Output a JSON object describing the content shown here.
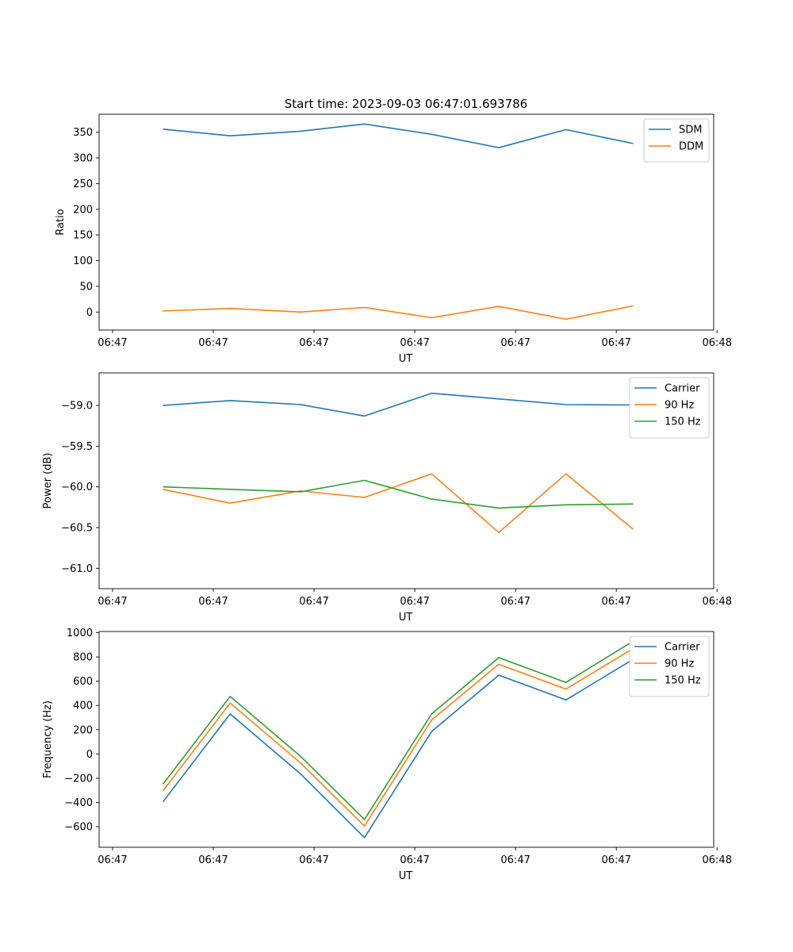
{
  "figure": {
    "title": "Start time: 2023-09-03 06:47:01.693786"
  },
  "chart_data": [
    {
      "type": "line",
      "id": "ratio",
      "title": "Start time: 2023-09-03 06:47:01.693786",
      "xlabel": "UT",
      "ylabel": "Ratio",
      "xlim": [
        -0.4,
        8.75
      ],
      "ylim": [
        -35,
        385
      ],
      "x_ticks": [
        {
          "value": -0.2,
          "label": "06:47"
        },
        {
          "value": 1.3,
          "label": "06:47"
        },
        {
          "value": 2.8,
          "label": "06:47"
        },
        {
          "value": 4.3,
          "label": "06:47"
        },
        {
          "value": 5.8,
          "label": "06:47"
        },
        {
          "value": 7.3,
          "label": "06:47"
        },
        {
          "value": 8.8,
          "label": "06:48"
        }
      ],
      "y_ticks": [
        {
          "value": 350,
          "label": "350"
        },
        {
          "value": 300,
          "label": "300"
        },
        {
          "value": 250,
          "label": "250"
        },
        {
          "value": 200,
          "label": "200"
        },
        {
          "value": 150,
          "label": "150"
        },
        {
          "value": 100,
          "label": "100"
        },
        {
          "value": 50,
          "label": "50"
        },
        {
          "value": 0,
          "label": "0"
        }
      ],
      "legend_position": "top-right",
      "series": [
        {
          "name": "SDM",
          "color": "#1f77b4",
          "x": [
            0.55,
            1.55,
            2.6,
            3.55,
            4.55,
            5.55,
            6.55,
            7.55
          ],
          "y": [
            356,
            343,
            352,
            366,
            346,
            320,
            355,
            328
          ]
        },
        {
          "name": "DDM",
          "color": "#ff7f0e",
          "x": [
            0.55,
            1.55,
            2.6,
            3.55,
            4.55,
            5.55,
            6.55,
            7.55
          ],
          "y": [
            2,
            7,
            0,
            9,
            -11,
            11,
            -14,
            12
          ]
        }
      ]
    },
    {
      "type": "line",
      "id": "power",
      "xlabel": "UT",
      "ylabel": "Power (dB)",
      "xlim": [
        -0.4,
        8.75
      ],
      "ylim": [
        -61.25,
        -58.6
      ],
      "x_ticks": [
        {
          "value": -0.2,
          "label": "06:47"
        },
        {
          "value": 1.3,
          "label": "06:47"
        },
        {
          "value": 2.8,
          "label": "06:47"
        },
        {
          "value": 4.3,
          "label": "06:47"
        },
        {
          "value": 5.8,
          "label": "06:47"
        },
        {
          "value": 7.3,
          "label": "06:47"
        },
        {
          "value": 8.8,
          "label": "06:48"
        }
      ],
      "y_ticks": [
        {
          "value": -59.0,
          "label": "−59.0"
        },
        {
          "value": -59.5,
          "label": "−59.5"
        },
        {
          "value": -60.0,
          "label": "−60.0"
        },
        {
          "value": -60.5,
          "label": "−60.5"
        },
        {
          "value": -61.0,
          "label": "−61.0"
        }
      ],
      "legend_position": "top-right",
      "series": [
        {
          "name": "Carrier",
          "color": "#1f77b4",
          "x": [
            0.55,
            1.55,
            2.6,
            3.55,
            4.55,
            5.55,
            6.55,
            7.55
          ],
          "y": [
            -59.0,
            -58.94,
            -58.99,
            -59.13,
            -58.85,
            -58.92,
            -58.99,
            -58.995
          ]
        },
        {
          "name": "90 Hz",
          "color": "#ff7f0e",
          "x": [
            0.55,
            1.55,
            2.6,
            3.55,
            4.55,
            5.55,
            6.55,
            7.55
          ],
          "y": [
            -60.03,
            -60.2,
            -60.05,
            -60.13,
            -59.84,
            -60.56,
            -59.84,
            -60.52
          ]
        },
        {
          "name": "150 Hz",
          "color": "#2ca02c",
          "x": [
            0.55,
            1.55,
            2.6,
            3.55,
            4.55,
            5.55,
            6.55,
            7.55
          ],
          "y": [
            -60.0,
            -60.03,
            -60.06,
            -59.92,
            -60.15,
            -60.26,
            -60.22,
            -60.21
          ]
        }
      ]
    },
    {
      "type": "line",
      "id": "frequency",
      "xlabel": "UT",
      "ylabel": "Frequency (Hz)",
      "xlim": [
        -0.4,
        8.75
      ],
      "ylim": [
        -770,
        1010
      ],
      "x_ticks": [
        {
          "value": -0.2,
          "label": "06:47"
        },
        {
          "value": 1.3,
          "label": "06:47"
        },
        {
          "value": 2.8,
          "label": "06:47"
        },
        {
          "value": 4.3,
          "label": "06:47"
        },
        {
          "value": 5.8,
          "label": "06:47"
        },
        {
          "value": 7.3,
          "label": "06:47"
        },
        {
          "value": 8.8,
          "label": "06:48"
        }
      ],
      "y_ticks": [
        {
          "value": 1000,
          "label": "1000"
        },
        {
          "value": 800,
          "label": "800"
        },
        {
          "value": 600,
          "label": "600"
        },
        {
          "value": 400,
          "label": "400"
        },
        {
          "value": 200,
          "label": "200"
        },
        {
          "value": 0,
          "label": "0"
        },
        {
          "value": -200,
          "label": "−200"
        },
        {
          "value": -400,
          "label": "−400"
        },
        {
          "value": -600,
          "label": "−600"
        }
      ],
      "legend_position": "top-right",
      "series": [
        {
          "name": "Carrier",
          "color": "#1f77b4",
          "x": [
            0.55,
            1.55,
            2.6,
            3.55,
            4.55,
            5.55,
            6.55,
            7.55
          ],
          "y": [
            -395,
            330,
            -165,
            -690,
            185,
            650,
            445,
            780
          ]
        },
        {
          "name": "90 Hz",
          "color": "#ff7f0e",
          "x": [
            0.55,
            1.55,
            2.6,
            3.55,
            4.55,
            5.55,
            6.55,
            7.55
          ],
          "y": [
            -305,
            420,
            -75,
            -595,
            280,
            740,
            535,
            870
          ]
        },
        {
          "name": "150 Hz",
          "color": "#2ca02c",
          "x": [
            0.55,
            1.55,
            2.6,
            3.55,
            4.55,
            5.55,
            6.55,
            7.55
          ],
          "y": [
            -250,
            475,
            -20,
            -540,
            330,
            795,
            590,
            930
          ]
        }
      ]
    }
  ]
}
